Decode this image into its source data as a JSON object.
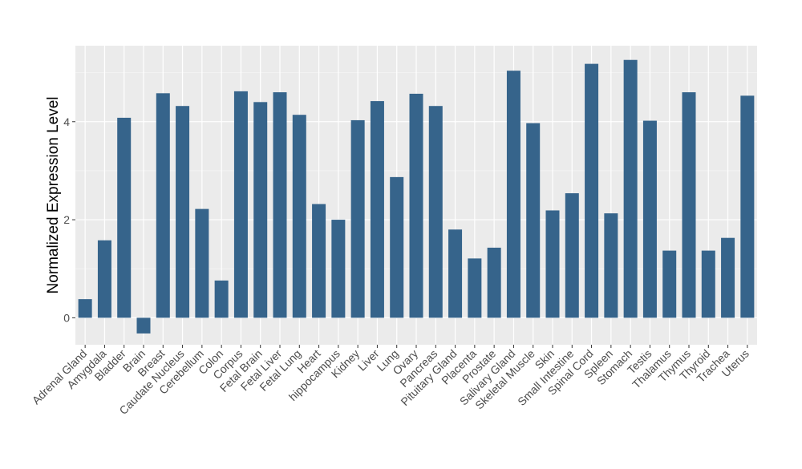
{
  "chart_data": {
    "type": "bar",
    "title": "",
    "xlabel": "",
    "ylabel": "Normalized Expression Level",
    "ylim": [
      -0.55,
      5.55
    ],
    "yticks": [
      0,
      2,
      4
    ],
    "grid": true,
    "colors": {
      "bar": "#36648b",
      "panel": "#ebebeb",
      "grid_major": "#ffffff",
      "grid_minor": "#f5f5f5",
      "tick_text": "#4d4d4d",
      "axis_title": "#000000"
    },
    "categories": [
      "Adrenal Gland",
      "Amygdala",
      "Bladder",
      "Brain",
      "Breast",
      "Caudate Nucleus",
      "Cerebellum",
      "Colon",
      "Corpus",
      "Fetal Brain",
      "Fetal Liver",
      "Fetal Lung",
      "Heart",
      "hippocampus",
      "Kidney",
      "Liver",
      "Lung",
      "Ovary",
      "Pancreas",
      "Pituitary Gland",
      "Placenta",
      "Prostate",
      "Salivary Gland",
      "Skeletal Muscle",
      "Skin",
      "Small Intestine",
      "Spinal Cord",
      "Spleen",
      "Stomach",
      "Testis",
      "Thalamus",
      "Thymus",
      "Thyroid",
      "Trachea",
      "Uterus"
    ],
    "values": [
      0.38,
      1.58,
      4.08,
      -0.32,
      4.58,
      4.32,
      2.22,
      0.76,
      4.62,
      4.4,
      4.6,
      4.14,
      2.32,
      2.0,
      4.03,
      4.42,
      2.87,
      4.57,
      4.32,
      1.8,
      1.21,
      1.43,
      5.04,
      3.97,
      2.19,
      2.54,
      5.18,
      2.13,
      5.26,
      4.02,
      1.37,
      4.6,
      1.37,
      1.63,
      4.53
    ]
  }
}
